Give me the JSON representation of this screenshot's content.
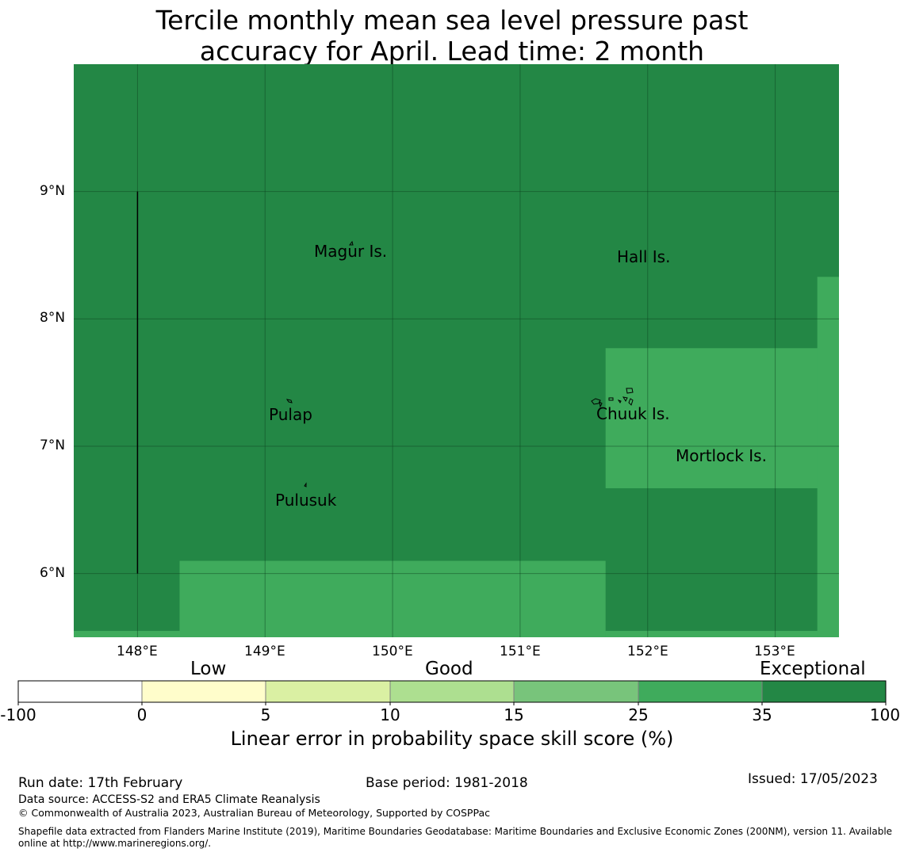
{
  "title": {
    "line1": "Tercile monthly mean sea level pressure past",
    "line2": "accuracy for April. Lead time: 2 month"
  },
  "colors": {
    "exceptional": "#238745",
    "very_good": "#3fab5c",
    "good_mid": "#78c47b",
    "good_low": "#addf90",
    "low_mid": "#daf0a3",
    "low": "#fffdcb",
    "none": "#ffffff"
  },
  "map": {
    "lon_range": [
      147.5,
      153.5
    ],
    "lat_range": [
      5.5,
      10.0
    ],
    "lon_ticks": [
      "148°E",
      "149°E",
      "150°E",
      "151°E",
      "152°E",
      "153°E"
    ],
    "lat_ticks": [
      "6°N",
      "7°N",
      "8°N",
      "9°N"
    ],
    "skill_regions": [
      {
        "category": "very_good",
        "lon": [
          147.5,
          153.5
        ],
        "lat": [
          5.5,
          5.55
        ]
      },
      {
        "category": "very_good",
        "lon": [
          148.33,
          151.67
        ],
        "lat": [
          5.5,
          6.1
        ]
      },
      {
        "category": "very_good",
        "lon": [
          151.67,
          153.5
        ],
        "lat": [
          6.67,
          7.77
        ]
      },
      {
        "category": "very_good",
        "lon": [
          153.33,
          153.5
        ],
        "lat": [
          5.5,
          8.33
        ]
      }
    ],
    "boundary_line": {
      "lon": 148.0,
      "lat": [
        6.0,
        9.0
      ]
    },
    "places": [
      {
        "name": "Magur Is.",
        "lon": 149.69,
        "lat": 8.53
      },
      {
        "name": "Hall Is.",
        "lon": 151.97,
        "lat": 8.48
      },
      {
        "name": "Pulap",
        "lon": 149.21,
        "lat": 7.24
      },
      {
        "name": "Chuuk Is.",
        "lon": 151.86,
        "lat": 7.25
      },
      {
        "name": "Mortlock Is.",
        "lon": 152.58,
        "lat": 6.92
      },
      {
        "name": "Pulusuk",
        "lon": 149.33,
        "lat": 6.58
      }
    ]
  },
  "colorbar": {
    "categories": [
      "Low",
      "Good",
      "Exceptional"
    ],
    "tick_labels": [
      "-100",
      "0",
      "5",
      "10",
      "15",
      "25",
      "35",
      "100"
    ],
    "bins": [
      "none",
      "low",
      "low_mid",
      "good_low",
      "good_mid",
      "very_good",
      "exceptional"
    ],
    "title": "Linear error in probability space skill score (%)"
  },
  "footer": {
    "run_date": "Run date: 17th February",
    "base_period": "Base period: 1981-2018",
    "issued": "Issued: 17/05/2023",
    "data_source": "Data source: ACCESS-S2 and ERA5 Climate Reanalysis",
    "copyright": "© Commonwealth of Australia 2023, Australian Bureau of Meteorology, Supported by COSPPac",
    "shapefile_line1": "Shapefile data extracted from Flanders Marine Institute (2019), Maritime Boundaries Geodatabase: Maritime Boundaries and Exclusive Economic Zones (200NM), version 11. Available",
    "shapefile_line2": "online at http://www.marineregions.org/."
  }
}
